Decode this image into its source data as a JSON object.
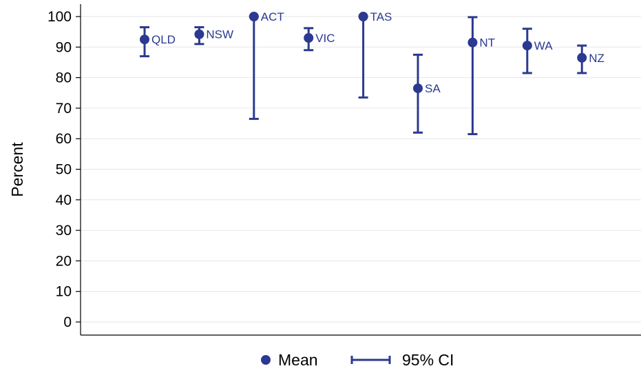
{
  "chart_data": {
    "type": "scatter",
    "ylabel": "Percent",
    "ylim": [
      0,
      100
    ],
    "yticks": [
      0,
      10,
      20,
      30,
      40,
      50,
      60,
      70,
      80,
      90,
      100
    ],
    "grid": true,
    "legend_placement": "bottom",
    "points": [
      {
        "label": "QLD",
        "mean": 92.5,
        "lo": 87.0,
        "hi": 96.5
      },
      {
        "label": "NSW",
        "mean": 94.2,
        "lo": 91.0,
        "hi": 96.5
      },
      {
        "label": "ACT",
        "mean": 100.0,
        "lo": 66.5,
        "hi": 100.0
      },
      {
        "label": "VIC",
        "mean": 93.0,
        "lo": 89.0,
        "hi": 96.2
      },
      {
        "label": "TAS",
        "mean": 100.0,
        "lo": 73.5,
        "hi": 100.0
      },
      {
        "label": "SA",
        "mean": 76.5,
        "lo": 62.0,
        "hi": 87.5
      },
      {
        "label": "NT",
        "mean": 91.5,
        "lo": 61.5,
        "hi": 99.8
      },
      {
        "label": "WA",
        "mean": 90.5,
        "lo": 81.5,
        "hi": 96.0
      },
      {
        "label": "NZ",
        "mean": 86.5,
        "lo": 81.5,
        "hi": 90.5
      }
    ],
    "legend": [
      {
        "name": "Mean",
        "marker": "circle"
      },
      {
        "name": "95% CI",
        "marker": "capped-line"
      }
    ],
    "colors": {
      "series": "#2b3990",
      "grid": "#e6e6e6",
      "axis": "#000000"
    }
  }
}
